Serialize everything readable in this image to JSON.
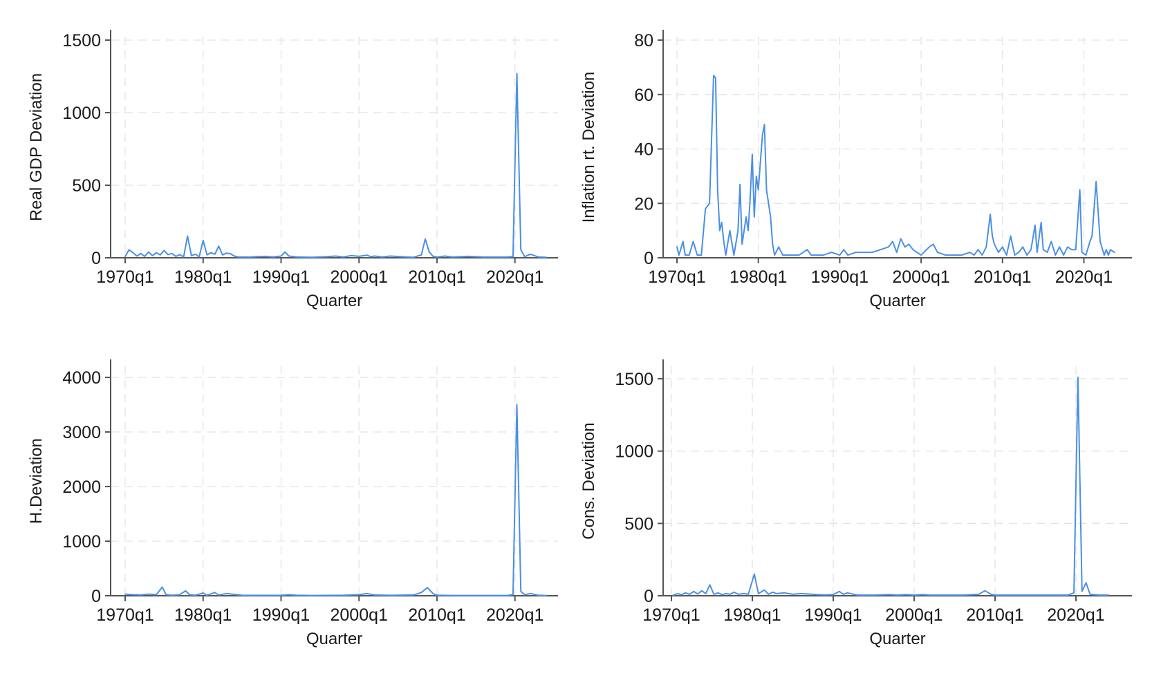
{
  "chart_data": [
    {
      "type": "line",
      "title": "",
      "xlabel": "Quarter",
      "ylabel": "Real GDP Deviation",
      "ylim": [
        0,
        1500
      ],
      "yticks": [
        0,
        500,
        1000,
        1500
      ],
      "xlim": [
        1970.0,
        2024.75
      ],
      "xticks": [
        1970,
        1980,
        1990,
        2000,
        2010,
        2020
      ],
      "xtick_labels": [
        "1970q1",
        "1980q1",
        "1990q1",
        "2000q1",
        "2010q1",
        "2020q1"
      ],
      "grid": true,
      "legend": "none",
      "line_color": "#4a8fe7",
      "points": [
        [
          1970.0,
          8
        ],
        [
          1970.5,
          55
        ],
        [
          1971.0,
          35
        ],
        [
          1971.5,
          12
        ],
        [
          1972.0,
          30
        ],
        [
          1972.5,
          10
        ],
        [
          1973.0,
          40
        ],
        [
          1973.5,
          15
        ],
        [
          1974.0,
          35
        ],
        [
          1974.5,
          20
        ],
        [
          1975.0,
          50
        ],
        [
          1975.5,
          22
        ],
        [
          1976.0,
          30
        ],
        [
          1976.5,
          10
        ],
        [
          1977.0,
          22
        ],
        [
          1977.5,
          6
        ],
        [
          1978.0,
          150
        ],
        [
          1978.5,
          15
        ],
        [
          1979.0,
          25
        ],
        [
          1979.5,
          6
        ],
        [
          1980.0,
          120
        ],
        [
          1980.5,
          20
        ],
        [
          1981.0,
          35
        ],
        [
          1981.5,
          25
        ],
        [
          1982.0,
          80
        ],
        [
          1982.5,
          20
        ],
        [
          1983.0,
          32
        ],
        [
          1983.5,
          28
        ],
        [
          1984.0,
          12
        ],
        [
          1984.5,
          6
        ],
        [
          1986.0,
          5
        ],
        [
          1987.0,
          8
        ],
        [
          1988.0,
          10
        ],
        [
          1989.0,
          6
        ],
        [
          1990.0,
          12
        ],
        [
          1990.5,
          40
        ],
        [
          1991.0,
          12
        ],
        [
          1992.0,
          6
        ],
        [
          1994.0,
          4
        ],
        [
          1996.0,
          8
        ],
        [
          1997.0,
          12
        ],
        [
          1998.0,
          6
        ],
        [
          1999.0,
          15
        ],
        [
          2000.0,
          10
        ],
        [
          2001.0,
          18
        ],
        [
          2001.5,
          8
        ],
        [
          2002.0,
          12
        ],
        [
          2003.0,
          6
        ],
        [
          2004.0,
          12
        ],
        [
          2006.0,
          6
        ],
        [
          2007.0,
          4
        ],
        [
          2008.0,
          20
        ],
        [
          2008.5,
          130
        ],
        [
          2009.0,
          40
        ],
        [
          2009.5,
          10
        ],
        [
          2010.0,
          5
        ],
        [
          2011.0,
          12
        ],
        [
          2012.0,
          5
        ],
        [
          2014.0,
          10
        ],
        [
          2016.0,
          5
        ],
        [
          2019.0,
          5
        ],
        [
          2019.75,
          8
        ],
        [
          2020.25,
          1270
        ],
        [
          2020.75,
          55
        ],
        [
          2021.25,
          8
        ],
        [
          2022.0,
          25
        ],
        [
          2022.5,
          15
        ],
        [
          2023.0,
          6
        ],
        [
          2024.0,
          4
        ]
      ]
    },
    {
      "type": "line",
      "title": "",
      "xlabel": "Quarter",
      "ylabel": "Inflation rt. Deviation",
      "ylim": [
        0,
        80
      ],
      "yticks": [
        0,
        20,
        40,
        60,
        80
      ],
      "xlim": [
        1970.0,
        2024.75
      ],
      "xticks": [
        1970,
        1980,
        1990,
        2000,
        2010,
        2020
      ],
      "xtick_labels": [
        "1970q1",
        "1980q1",
        "1990q1",
        "2000q1",
        "2010q1",
        "2020q1"
      ],
      "grid": true,
      "legend": "none",
      "line_color": "#4a8fe7",
      "points": [
        [
          1970.0,
          4
        ],
        [
          1970.25,
          1
        ],
        [
          1970.75,
          6
        ],
        [
          1971.0,
          1
        ],
        [
          1971.5,
          1
        ],
        [
          1972.0,
          6
        ],
        [
          1972.5,
          1
        ],
        [
          1973.0,
          1
        ],
        [
          1973.5,
          18
        ],
        [
          1974.0,
          20
        ],
        [
          1974.5,
          67
        ],
        [
          1974.75,
          66
        ],
        [
          1975.0,
          25
        ],
        [
          1975.25,
          10
        ],
        [
          1975.5,
          13
        ],
        [
          1975.75,
          6
        ],
        [
          1976.0,
          1
        ],
        [
          1976.5,
          10
        ],
        [
          1977.0,
          1
        ],
        [
          1977.5,
          10
        ],
        [
          1977.75,
          27
        ],
        [
          1978.0,
          5
        ],
        [
          1978.5,
          15
        ],
        [
          1978.75,
          10
        ],
        [
          1979.0,
          22
        ],
        [
          1979.25,
          38
        ],
        [
          1979.5,
          15
        ],
        [
          1979.75,
          30
        ],
        [
          1980.0,
          25
        ],
        [
          1980.25,
          35
        ],
        [
          1980.5,
          45
        ],
        [
          1980.75,
          49
        ],
        [
          1981.0,
          25
        ],
        [
          1981.5,
          15
        ],
        [
          1981.75,
          5
        ],
        [
          1982.0,
          1
        ],
        [
          1982.5,
          4
        ],
        [
          1983.0,
          1
        ],
        [
          1984.0,
          1
        ],
        [
          1985.0,
          1
        ],
        [
          1986.0,
          3
        ],
        [
          1986.5,
          1
        ],
        [
          1987.0,
          1
        ],
        [
          1988.0,
          1
        ],
        [
          1989.0,
          2
        ],
        [
          1990.0,
          1
        ],
        [
          1990.5,
          3
        ],
        [
          1991.0,
          1
        ],
        [
          1992.0,
          2
        ],
        [
          1993.0,
          2
        ],
        [
          1994.0,
          2
        ],
        [
          1995.0,
          3
        ],
        [
          1996.0,
          4
        ],
        [
          1996.5,
          6
        ],
        [
          1997.0,
          2
        ],
        [
          1997.5,
          7
        ],
        [
          1998.0,
          4
        ],
        [
          1998.5,
          5
        ],
        [
          1999.0,
          3
        ],
        [
          2000.0,
          1
        ],
        [
          2001.0,
          4
        ],
        [
          2001.5,
          5
        ],
        [
          2002.0,
          2
        ],
        [
          2003.0,
          1
        ],
        [
          2004.0,
          1
        ],
        [
          2005.0,
          1
        ],
        [
          2006.0,
          2
        ],
        [
          2006.5,
          1
        ],
        [
          2007.0,
          3
        ],
        [
          2007.5,
          1
        ],
        [
          2008.0,
          4
        ],
        [
          2008.5,
          16
        ],
        [
          2008.75,
          8
        ],
        [
          2009.0,
          5
        ],
        [
          2009.5,
          2
        ],
        [
          2010.0,
          4
        ],
        [
          2010.5,
          1
        ],
        [
          2011.0,
          8
        ],
        [
          2011.5,
          1
        ],
        [
          2012.0,
          2
        ],
        [
          2012.5,
          4
        ],
        [
          2013.0,
          1
        ],
        [
          2013.5,
          3
        ],
        [
          2014.0,
          12
        ],
        [
          2014.25,
          2
        ],
        [
          2014.75,
          13
        ],
        [
          2015.0,
          3
        ],
        [
          2015.5,
          2
        ],
        [
          2016.0,
          6
        ],
        [
          2016.5,
          1
        ],
        [
          2017.0,
          4
        ],
        [
          2017.5,
          1
        ],
        [
          2018.0,
          4
        ],
        [
          2018.5,
          3
        ],
        [
          2019.0,
          3
        ],
        [
          2019.5,
          25
        ],
        [
          2019.75,
          2
        ],
        [
          2020.25,
          1
        ],
        [
          2020.75,
          6
        ],
        [
          2021.0,
          8
        ],
        [
          2021.5,
          28
        ],
        [
          2022.0,
          6
        ],
        [
          2022.5,
          1
        ],
        [
          2022.75,
          3
        ],
        [
          2023.0,
          1
        ],
        [
          2023.25,
          3
        ],
        [
          2023.75,
          2
        ]
      ]
    },
    {
      "type": "line",
      "title": "",
      "xlabel": "Quarter",
      "ylabel": "H.Deviation",
      "ylim": [
        0,
        4000
      ],
      "yticks": [
        0,
        1000,
        2000,
        3000,
        4000
      ],
      "xlim": [
        1970.0,
        2024.75
      ],
      "xticks": [
        1970,
        1980,
        1990,
        2000,
        2010,
        2020
      ],
      "xtick_labels": [
        "1970q1",
        "1980q1",
        "1990q1",
        "2000q1",
        "2010q1",
        "2020q1"
      ],
      "grid": true,
      "legend": "none",
      "line_color": "#4a8fe7",
      "points": [
        [
          1970.0,
          30
        ],
        [
          1971.0,
          20
        ],
        [
          1972.0,
          15
        ],
        [
          1973.0,
          30
        ],
        [
          1974.0,
          20
        ],
        [
          1974.75,
          160
        ],
        [
          1975.25,
          20
        ],
        [
          1976.0,
          10
        ],
        [
          1977.0,
          20
        ],
        [
          1977.75,
          90
        ],
        [
          1978.25,
          20
        ],
        [
          1979.0,
          10
        ],
        [
          1980.0,
          50
        ],
        [
          1980.5,
          10
        ],
        [
          1981.5,
          60
        ],
        [
          1982.0,
          15
        ],
        [
          1983.0,
          40
        ],
        [
          1984.0,
          25
        ],
        [
          1985.0,
          10
        ],
        [
          1986.0,
          8
        ],
        [
          1988.0,
          8
        ],
        [
          1990.0,
          10
        ],
        [
          1991.0,
          20
        ],
        [
          1992.0,
          10
        ],
        [
          1994.0,
          5
        ],
        [
          1996.0,
          8
        ],
        [
          1998.0,
          10
        ],
        [
          2000.0,
          20
        ],
        [
          2001.0,
          40
        ],
        [
          2002.0,
          15
        ],
        [
          2004.0,
          8
        ],
        [
          2007.0,
          15
        ],
        [
          2008.0,
          60
        ],
        [
          2008.75,
          150
        ],
        [
          2009.5,
          40
        ],
        [
          2010.0,
          10
        ],
        [
          2012.0,
          5
        ],
        [
          2016.0,
          5
        ],
        [
          2019.0,
          5
        ],
        [
          2019.75,
          20
        ],
        [
          2020.25,
          3500
        ],
        [
          2020.75,
          80
        ],
        [
          2021.25,
          20
        ],
        [
          2022.0,
          40
        ],
        [
          2023.0,
          10
        ],
        [
          2024.0,
          5
        ]
      ]
    },
    {
      "type": "line",
      "title": "",
      "xlabel": "Quarter",
      "ylabel": "Cons. Deviation",
      "ylim": [
        0,
        1500
      ],
      "yticks": [
        0,
        500,
        1000,
        1500
      ],
      "xlim": [
        1970.0,
        2024.75
      ],
      "xticks": [
        1970,
        1980,
        1990,
        2000,
        2010,
        2020
      ],
      "xtick_labels": [
        "1970q1",
        "1980q1",
        "1990q1",
        "2000q1",
        "2010q1",
        "2020q1"
      ],
      "grid": true,
      "legend": "none",
      "line_color": "#4a8fe7",
      "points": [
        [
          1970.25,
          5
        ],
        [
          1970.75,
          15
        ],
        [
          1971.25,
          8
        ],
        [
          1971.75,
          20
        ],
        [
          1972.25,
          10
        ],
        [
          1972.75,
          30
        ],
        [
          1973.25,
          12
        ],
        [
          1973.75,
          35
        ],
        [
          1974.25,
          15
        ],
        [
          1974.75,
          75
        ],
        [
          1975.25,
          10
        ],
        [
          1975.75,
          20
        ],
        [
          1976.25,
          8
        ],
        [
          1976.75,
          15
        ],
        [
          1977.25,
          10
        ],
        [
          1977.75,
          25
        ],
        [
          1978.25,
          10
        ],
        [
          1979.0,
          15
        ],
        [
          1979.5,
          10
        ],
        [
          1980.25,
          150
        ],
        [
          1980.75,
          15
        ],
        [
          1981.5,
          40
        ],
        [
          1982.0,
          10
        ],
        [
          1982.5,
          25
        ],
        [
          1983.0,
          15
        ],
        [
          1984.0,
          20
        ],
        [
          1985.0,
          10
        ],
        [
          1986.0,
          15
        ],
        [
          1987.0,
          12
        ],
        [
          1988.0,
          8
        ],
        [
          1989.0,
          6
        ],
        [
          1990.0,
          8
        ],
        [
          1990.75,
          30
        ],
        [
          1991.25,
          10
        ],
        [
          1991.75,
          20
        ],
        [
          1993.0,
          5
        ],
        [
          1995.0,
          5
        ],
        [
          1997.0,
          8
        ],
        [
          1998.0,
          5
        ],
        [
          1999.0,
          8
        ],
        [
          2000.0,
          5
        ],
        [
          2001.0,
          8
        ],
        [
          2002.0,
          5
        ],
        [
          2004.0,
          5
        ],
        [
          2006.0,
          5
        ],
        [
          2008.0,
          10
        ],
        [
          2008.75,
          35
        ],
        [
          2009.5,
          10
        ],
        [
          2010.0,
          5
        ],
        [
          2012.0,
          5
        ],
        [
          2016.0,
          5
        ],
        [
          2019.0,
          5
        ],
        [
          2019.75,
          20
        ],
        [
          2020.25,
          1510
        ],
        [
          2020.75,
          30
        ],
        [
          2021.25,
          90
        ],
        [
          2021.75,
          10
        ],
        [
          2023.0,
          5
        ],
        [
          2024.0,
          5
        ]
      ]
    }
  ]
}
